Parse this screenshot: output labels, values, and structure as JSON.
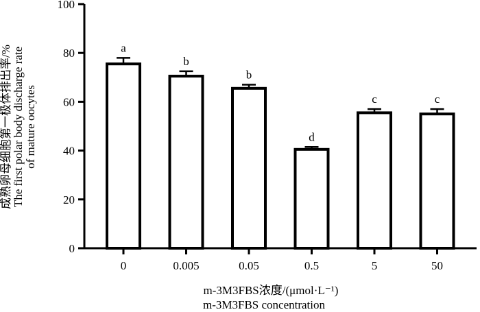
{
  "chart_data": {
    "type": "bar",
    "categories": [
      "0",
      "0.005",
      "0.05",
      "0.5",
      "5",
      "50"
    ],
    "values": [
      75.5,
      70.5,
      65.5,
      40.5,
      55.5,
      55.0
    ],
    "errors": [
      2.5,
      2.0,
      1.5,
      1.0,
      1.5,
      2.0
    ],
    "significance": [
      "a",
      "b",
      "b",
      "d",
      "c",
      "c"
    ],
    "ylim": [
      0,
      100
    ],
    "yticks": [
      "0",
      "20",
      "40",
      "60",
      "80",
      "100"
    ],
    "ylabel_lines": [
      "成熟卵母细胞第一极体排出率/%",
      "The first polar body discharge rate",
      "of mature oocytes"
    ],
    "xlabel_lines": [
      "m-3M3FBS浓度/(μmol·L⁻¹)",
      "m-3M3FBS concentration"
    ],
    "colors": {
      "bar_fill": "#ffffff",
      "bar_stroke": "#000000",
      "axis": "#000000"
    }
  }
}
